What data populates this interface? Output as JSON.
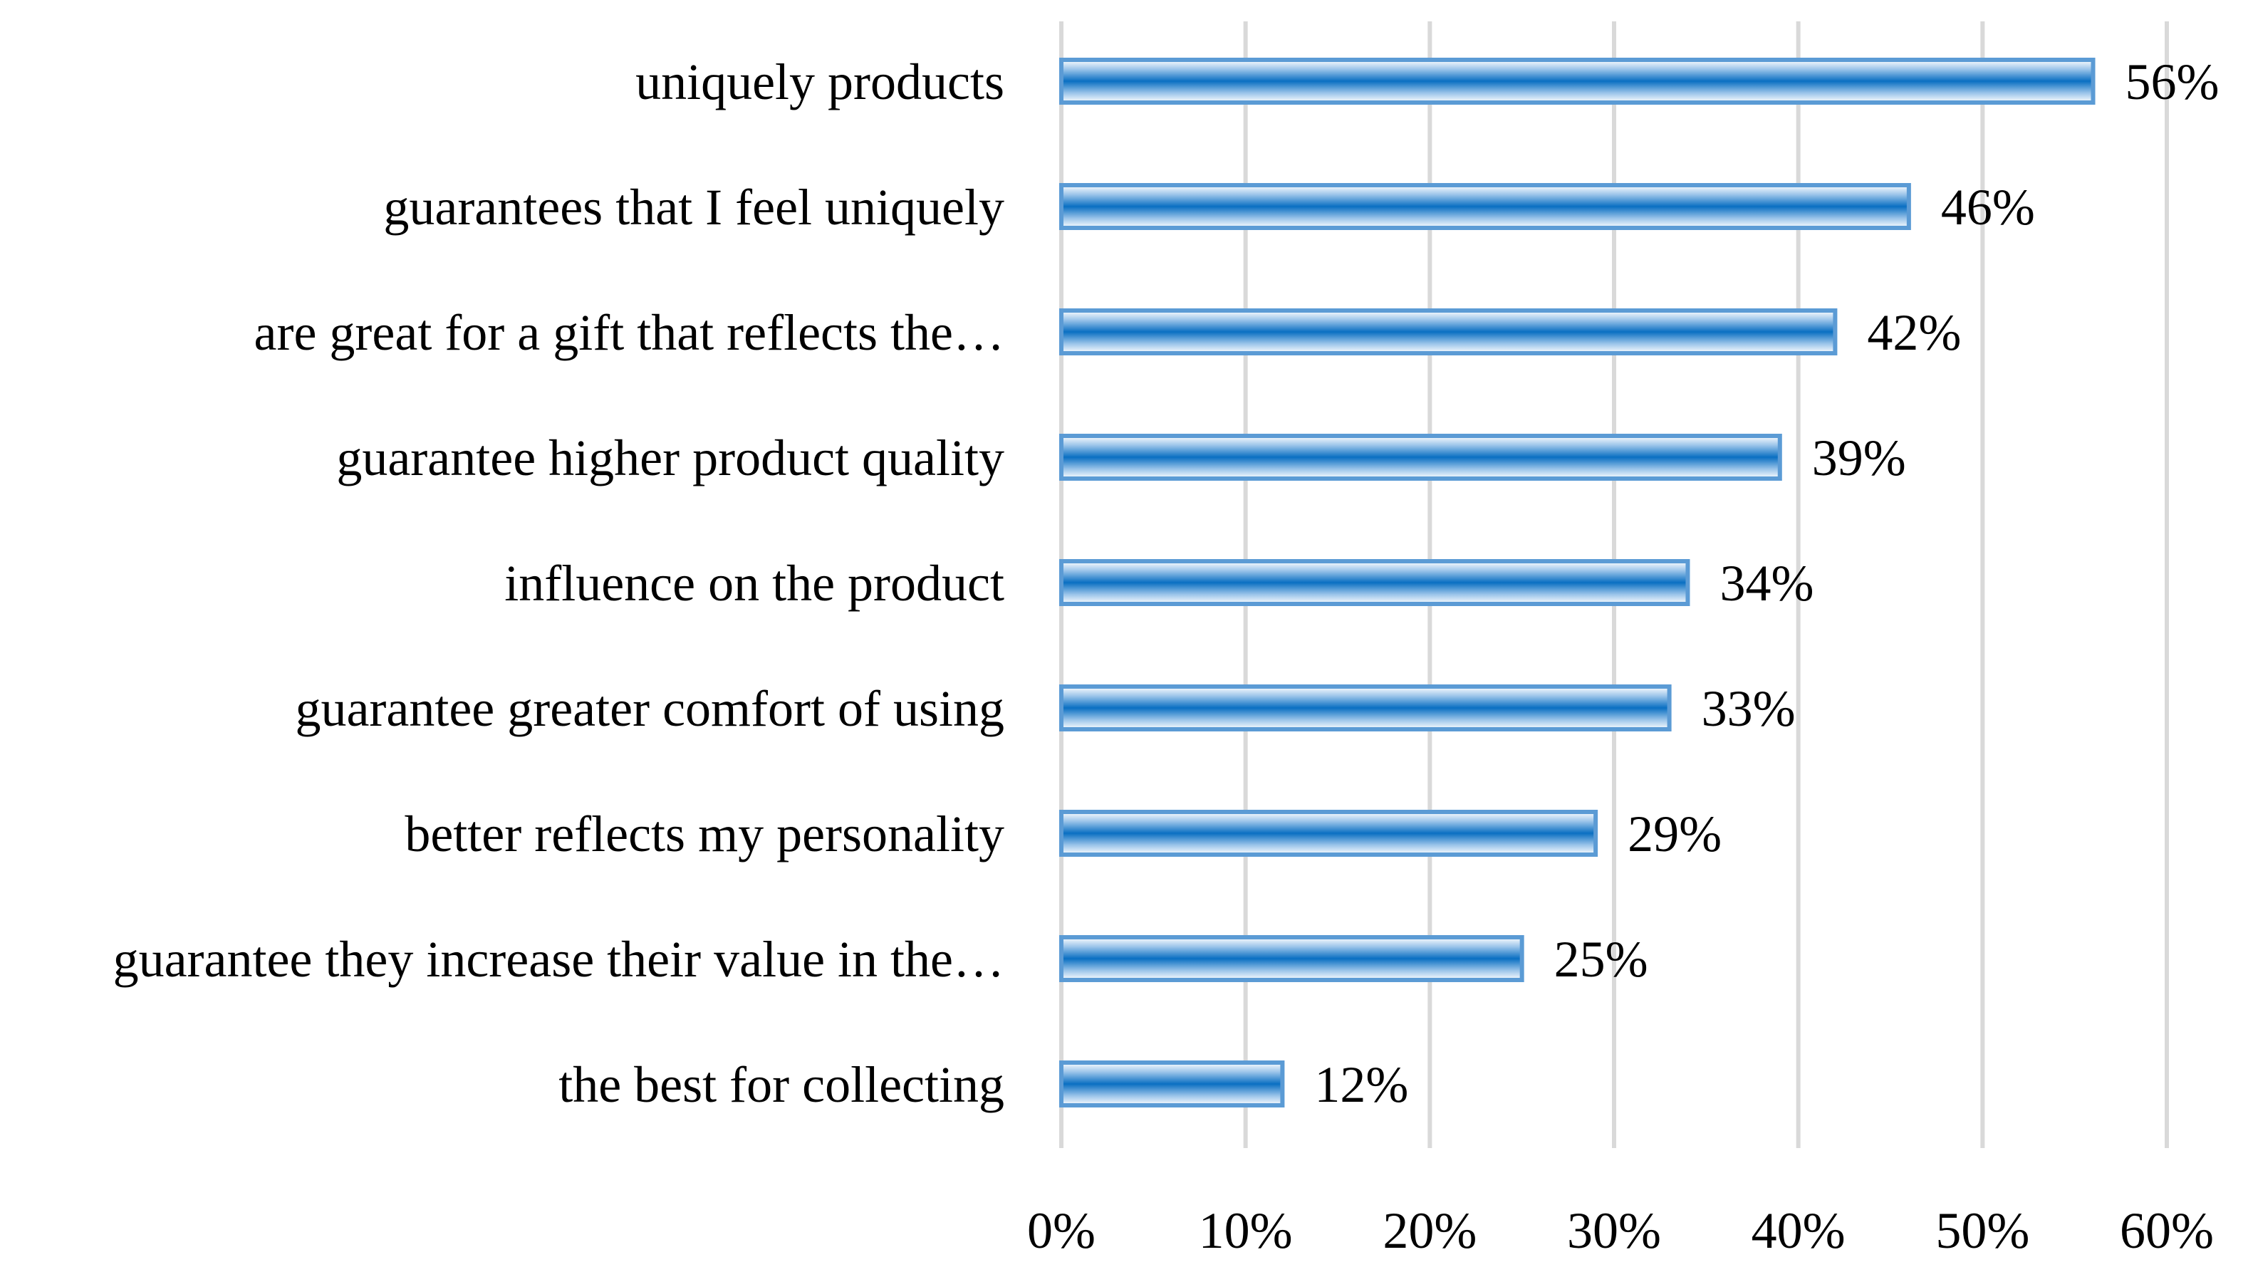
{
  "chart_data": {
    "type": "bar",
    "orientation": "horizontal",
    "categories": [
      "uniquely products",
      "guarantees that I feel uniquely",
      "are great for a gift that reflects the…",
      "guarantee higher product quality",
      "influence on the product",
      "guarantee greater comfort of using",
      "better reflects my personality",
      "guarantee they increase their value in the…",
      "the best for collecting"
    ],
    "values": [
      56,
      46,
      42,
      39,
      34,
      33,
      29,
      25,
      12
    ],
    "value_labels": [
      "56%",
      "46%",
      "42%",
      "39%",
      "34%",
      "33%",
      "29%",
      "25%",
      "12%"
    ],
    "x_ticks": [
      0,
      10,
      20,
      30,
      40,
      50,
      60
    ],
    "x_tick_labels": [
      "0%",
      "10%",
      "20%",
      "30%",
      "40%",
      "50%",
      "60%"
    ],
    "xlim": [
      0,
      60
    ],
    "title": "",
    "xlabel": "",
    "ylabel": "",
    "grid": true,
    "legend": "none",
    "colors": {
      "bar_edge": "#5b9bd5",
      "bar_center": "#0a6fc2",
      "bar_highlight": "#ffffff",
      "gridline": "#d9d9d9",
      "text": "#000000"
    }
  }
}
